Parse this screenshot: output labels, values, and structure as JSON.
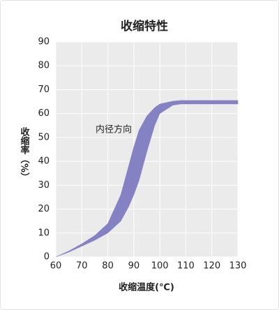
{
  "chart_data": {
    "type": "band",
    "title": "收缩特性",
    "x_label": "收缩温度(℃)",
    "y_label": "收缩率（%）",
    "annotation": "内径方向",
    "x": [
      60,
      65,
      70,
      75,
      80,
      85,
      88,
      90,
      92,
      95,
      98,
      100,
      105,
      108,
      110,
      120,
      130
    ],
    "upper": [
      0,
      2.5,
      5.5,
      9,
      14,
      26,
      38,
      46,
      53,
      59,
      62.5,
      64,
      65.2,
      65.5,
      65.5,
      65.5,
      65.5
    ],
    "lower": [
      0,
      2,
      4.5,
      7,
      10,
      15,
      21,
      26,
      32,
      44,
      55,
      60,
      63.5,
      64,
      64,
      64,
      64
    ],
    "color": "#8582c4",
    "xlim": [
      60,
      130
    ],
    "xticks": [
      60,
      70,
      80,
      90,
      100,
      110,
      120,
      130
    ],
    "ylim": [
      0,
      90
    ],
    "yticks": [
      0,
      10,
      20,
      30,
      40,
      50,
      60,
      70,
      80,
      90
    ],
    "grid": true
  }
}
